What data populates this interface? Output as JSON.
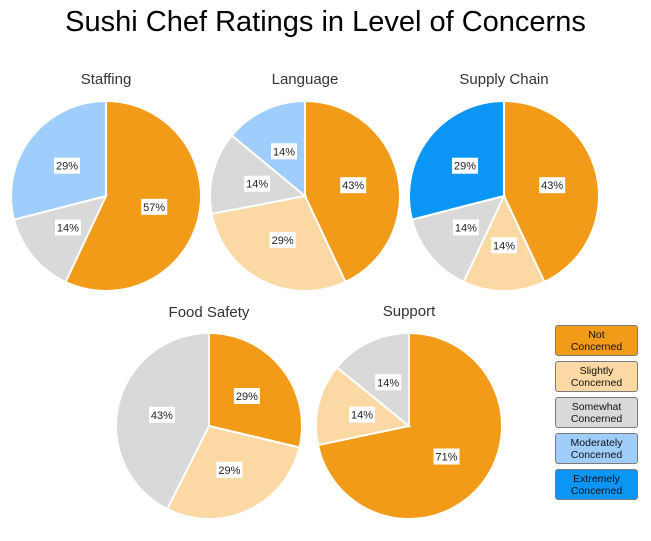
{
  "title": "Sushi Chef Ratings in Level of Concerns",
  "colors": {
    "Not Concerned": "#f29b18",
    "Slightly Concerned": "#fcd8a4",
    "Somewhat Concerned": "#d9d9d9",
    "Moderately Concerned": "#9fcdfc",
    "Extremely Concerned": "#0b96f5"
  },
  "legend": [
    {
      "line1": "Not",
      "line2": "Concerned",
      "category": "Not Concerned"
    },
    {
      "line1": "Slightly",
      "line2": "Concerned",
      "category": "Slightly Concerned"
    },
    {
      "line1": "Somewhat",
      "line2": "Concerned",
      "category": "Somewhat Concerned"
    },
    {
      "line1": "Moderately",
      "line2": "Concerned",
      "category": "Moderately Concerned"
    },
    {
      "line1": "Extremely",
      "line2": "Concerned",
      "category": "Extremely Concerned"
    }
  ],
  "chart_data": [
    {
      "type": "pie",
      "title": "Staffing",
      "legend_position": "right",
      "slices": [
        {
          "category": "Not Concerned",
          "value": 57,
          "label": "57%"
        },
        {
          "category": "Somewhat Concerned",
          "value": 14,
          "label": "14%"
        },
        {
          "category": "Moderately Concerned",
          "value": 29,
          "label": "29%"
        }
      ]
    },
    {
      "type": "pie",
      "title": "Language",
      "slices": [
        {
          "category": "Not Concerned",
          "value": 43,
          "label": "43%"
        },
        {
          "category": "Slightly Concerned",
          "value": 29,
          "label": "29%"
        },
        {
          "category": "Somewhat Concerned",
          "value": 14,
          "label": "14%"
        },
        {
          "category": "Moderately Concerned",
          "value": 14,
          "label": "14%"
        }
      ]
    },
    {
      "type": "pie",
      "title": "Supply Chain",
      "slices": [
        {
          "category": "Not Concerned",
          "value": 43,
          "label": "43%"
        },
        {
          "category": "Slightly Concerned",
          "value": 14,
          "label": "14%"
        },
        {
          "category": "Somewhat Concerned",
          "value": 14,
          "label": "14%"
        },
        {
          "category": "Extremely Concerned",
          "value": 29,
          "label": "29%"
        }
      ]
    },
    {
      "type": "pie",
      "title": "Food Safety",
      "slices": [
        {
          "category": "Not Concerned",
          "value": 29,
          "label": "29%"
        },
        {
          "category": "Slightly Concerned",
          "value": 29,
          "label": "29%"
        },
        {
          "category": "Somewhat Concerned",
          "value": 43,
          "label": "43%"
        }
      ]
    },
    {
      "type": "pie",
      "title": "Support",
      "slices": [
        {
          "category": "Not Concerned",
          "value": 71,
          "label": "71%"
        },
        {
          "category": "Slightly Concerned",
          "value": 14,
          "label": "14%"
        },
        {
          "category": "Somewhat Concerned",
          "value": 14,
          "label": "14%"
        }
      ]
    }
  ]
}
